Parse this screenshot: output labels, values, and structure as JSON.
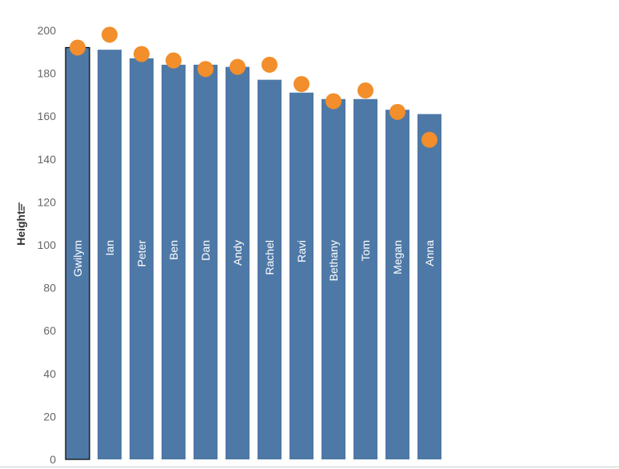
{
  "chart_data": {
    "type": "bar",
    "categories": [
      "Gwilym",
      "Ian",
      "Peter",
      "Ben",
      "Dan",
      "Andy",
      "Rachel",
      "Ravi",
      "Bethany",
      "Tom",
      "Megan",
      "Anna"
    ],
    "series": [
      {
        "mark": "bar",
        "color": "#4e79a7",
        "values": [
          192,
          191,
          187,
          184,
          184,
          183,
          177,
          171,
          168,
          168,
          163,
          161
        ]
      },
      {
        "mark": "circle",
        "color": "#f28e2b",
        "values": [
          192,
          198,
          189,
          186,
          182,
          183,
          184,
          175,
          167,
          172,
          162,
          149
        ]
      }
    ],
    "ylabel": "Height",
    "ylim": [
      0,
      200
    ],
    "yticks": [
      0,
      20,
      40,
      60,
      80,
      100,
      120,
      140,
      160,
      180,
      200
    ],
    "highlighted_category": "Gwilym",
    "sort_icon": "sort-descending-icon",
    "grid": false
  }
}
